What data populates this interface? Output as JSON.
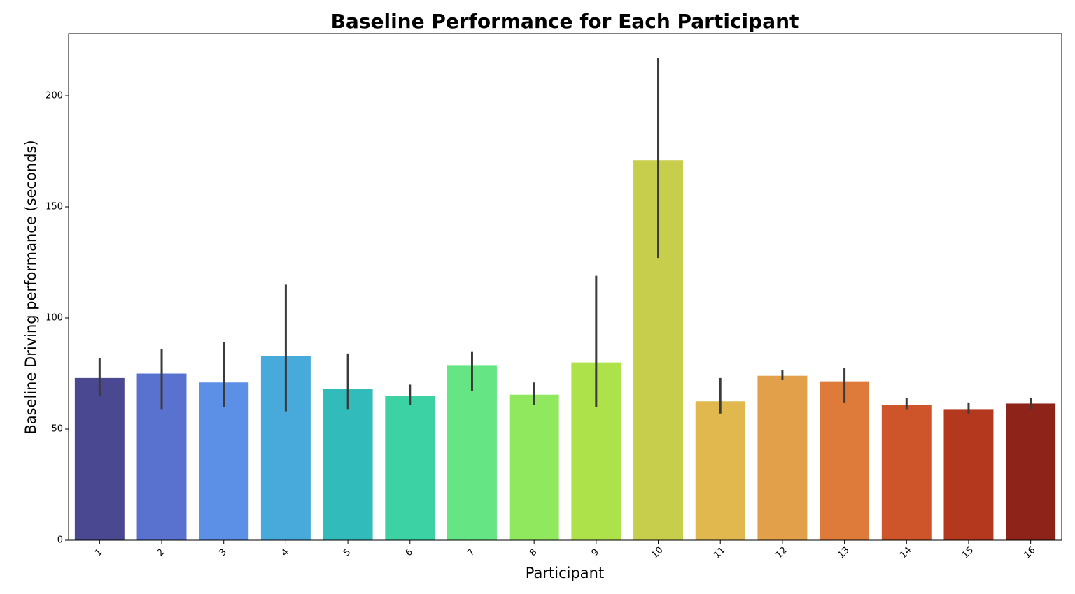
{
  "chart_data": {
    "type": "bar",
    "title": "Baseline Performance for Each Participant",
    "xlabel": "Participant",
    "ylabel": "Baseline Driving performance (seconds)",
    "categories": [
      "1",
      "2",
      "3",
      "4",
      "5",
      "6",
      "7",
      "8",
      "9",
      "10",
      "11",
      "12",
      "13",
      "14",
      "15",
      "16"
    ],
    "values": [
      73,
      75,
      71,
      83,
      68,
      65,
      78.5,
      65.5,
      80,
      171,
      62.5,
      74,
      71.5,
      61,
      59,
      61.5
    ],
    "error_low": [
      65,
      59,
      60,
      58,
      59,
      61,
      67,
      61,
      60,
      127,
      57,
      72,
      62,
      59,
      57,
      59
    ],
    "error_high": [
      82,
      86,
      89,
      115,
      84,
      70,
      85,
      71,
      119,
      217,
      73,
      76.5,
      77.5,
      64,
      62,
      64
    ],
    "colors": [
      "#4a4891",
      "#5a72cf",
      "#5c8fe6",
      "#48aadb",
      "#31bcbb",
      "#3dd2a3",
      "#66e584",
      "#8fe85e",
      "#aee24b",
      "#c7ce4b",
      "#e0b84e",
      "#e3a04a",
      "#de7a3a",
      "#cd5529",
      "#b4381d",
      "#8e2419"
    ],
    "error_color": "#3b3b3b",
    "ylim": [
      0,
      228
    ],
    "yticks": [
      0,
      50,
      100,
      150,
      200
    ],
    "grid": false,
    "legend": "none"
  }
}
